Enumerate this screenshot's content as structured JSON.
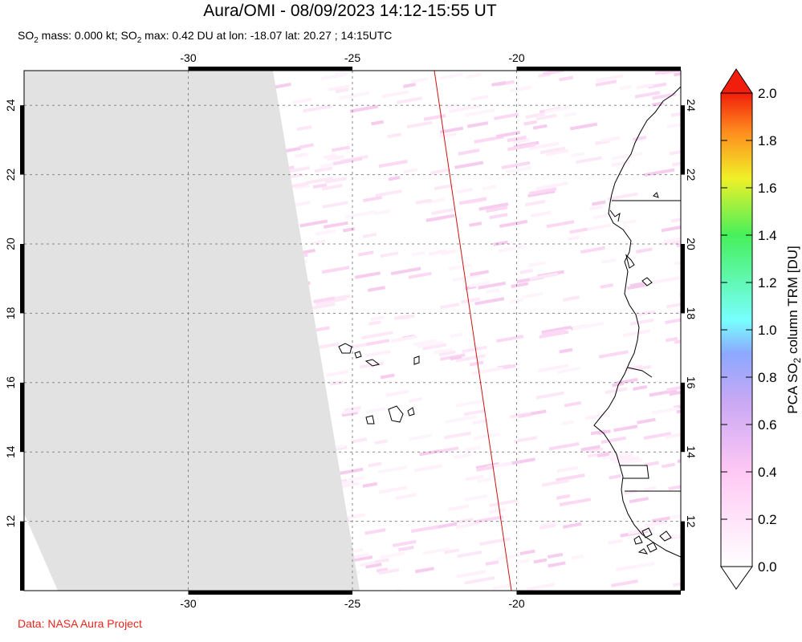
{
  "title": "Aura/OMI - 08/09/2023 14:12-15:55 UT",
  "subtitle": {
    "p1": "SO",
    "sub1": "2",
    "p2": " mass: 0.000 kt; SO",
    "sub2": "2",
    "p3": " max: 0.42 DU at lon: -18.07 lat: 20.27 ; 14:15UTC"
  },
  "credit": "Data: NASA Aura Project",
  "map": {
    "lon_range": [
      -35,
      -15
    ],
    "lat_range": [
      10,
      25
    ],
    "lon_ticks": [
      -30,
      -25,
      -20
    ],
    "lat_ticks": [
      12,
      14,
      16,
      18,
      20,
      22,
      24
    ],
    "no_data_color": "#e2e2e2",
    "orbit_line_color": "#cc1111"
  },
  "colorbar": {
    "label_pre": "PCA SO",
    "label_sub": "2",
    "label_post": " column TRM [DU]",
    "min": 0.0,
    "max": 2.0,
    "ticks": [
      "0.0",
      "0.2",
      "0.4",
      "0.6",
      "0.8",
      "1.0",
      "1.2",
      "1.4",
      "1.6",
      "1.8",
      "2.0"
    ]
  }
}
